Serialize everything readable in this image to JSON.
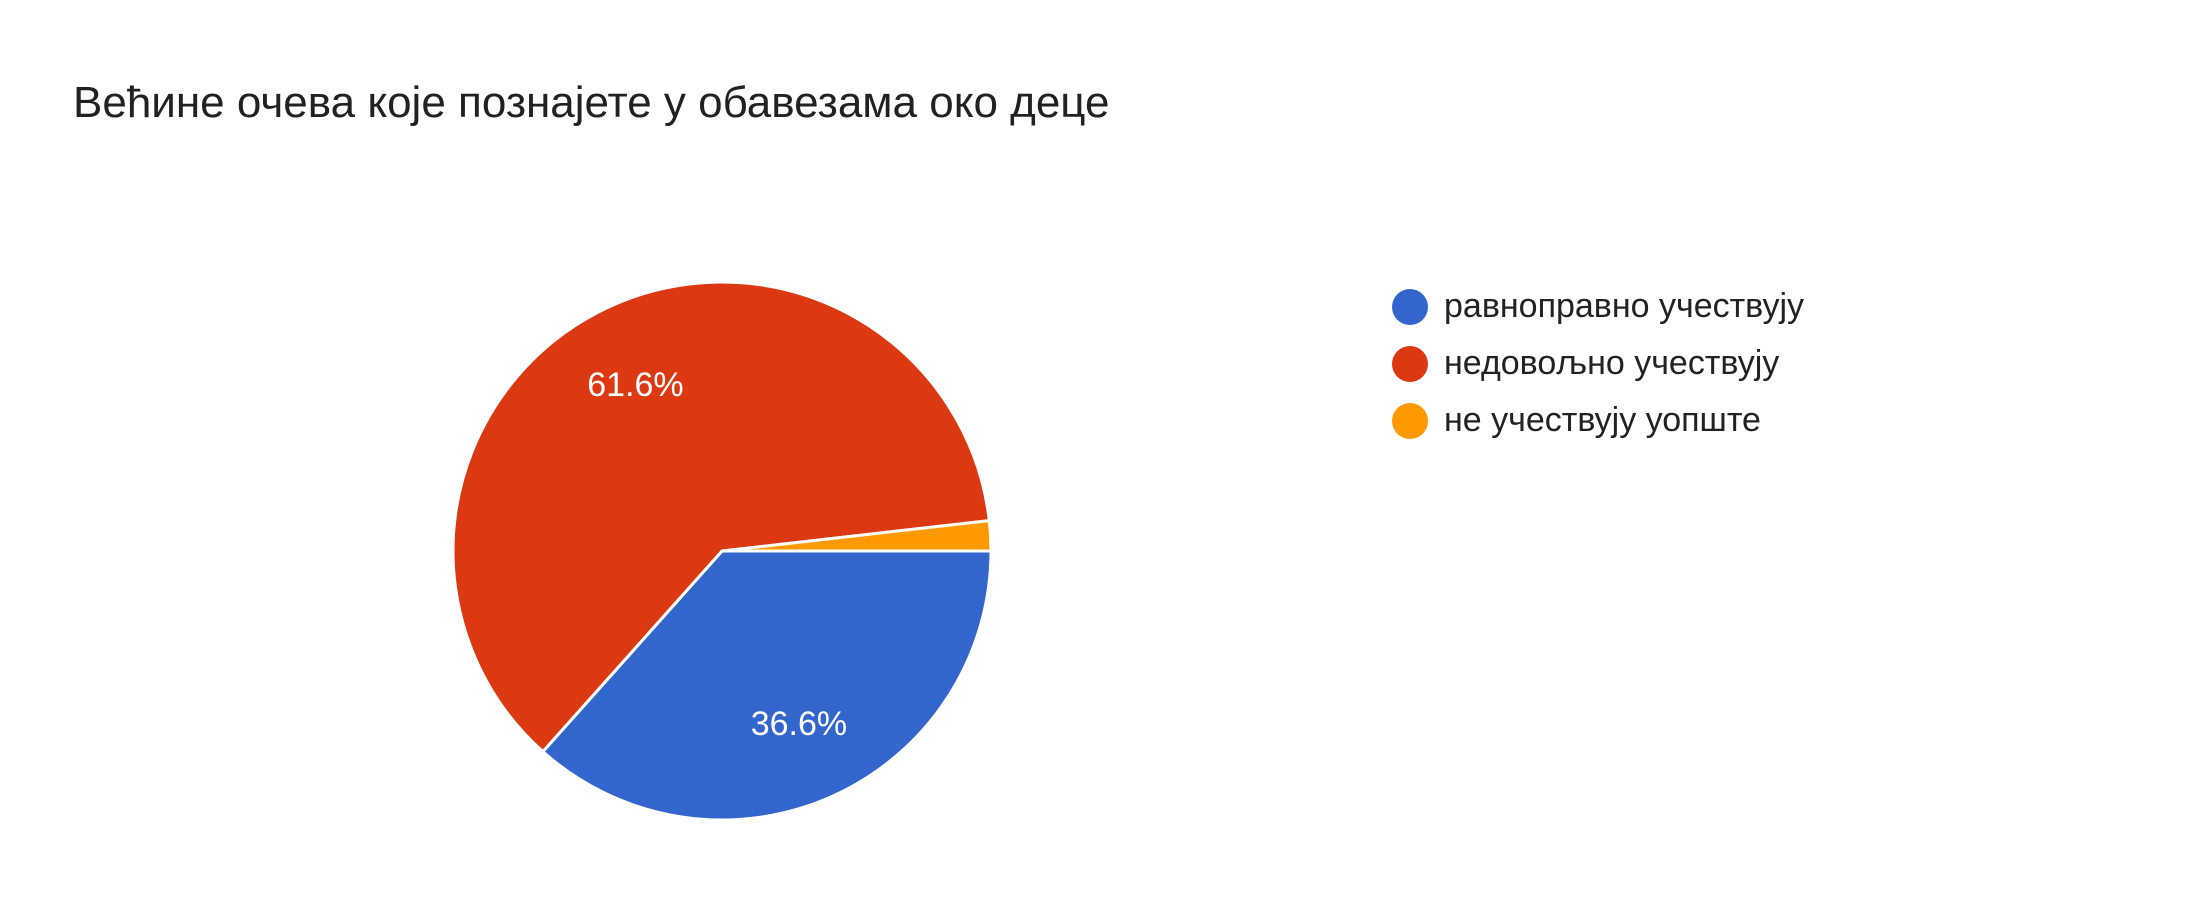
{
  "chart_data": {
    "type": "pie",
    "title": "Већине очева које познајете у обавезама око деце",
    "categories": [
      "равноправно учествују",
      "недовољно учествују",
      "не учествују уопште"
    ],
    "values": [
      36.6,
      61.6,
      1.8
    ],
    "data_labels": [
      "36.6%",
      "61.6%",
      ""
    ],
    "colors": [
      "#3366cc",
      "#dc3912",
      "#ff9900"
    ],
    "legend_position": "right"
  }
}
